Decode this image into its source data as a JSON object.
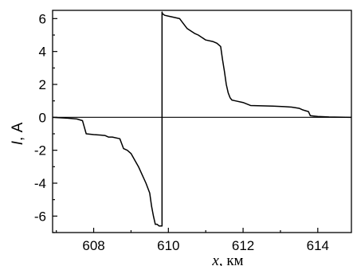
{
  "chart_data": {
    "type": "line",
    "xlabel_var": "x",
    "xlabel_unit": ", км",
    "ylabel_var": "I",
    "ylabel_unit": ", А",
    "xlim": [
      606.9,
      614.9
    ],
    "ylim": [
      -7.0,
      6.5
    ],
    "x_ticks": [
      608,
      610,
      612,
      614
    ],
    "y_ticks": [
      -6,
      -4,
      -2,
      0,
      2,
      4,
      6
    ],
    "x_tick_labels": [
      "608",
      "610",
      "612",
      "614"
    ],
    "y_tick_labels": [
      "-6",
      "-4",
      "-2",
      "0",
      "2",
      "4",
      "6"
    ],
    "grid": false,
    "zero_line": 0,
    "series": [
      {
        "x": [
          606.9,
          607.3,
          607.55,
          607.7,
          607.75,
          607.8,
          608.0,
          608.3,
          608.4,
          608.5,
          608.7,
          608.75,
          608.8,
          608.9,
          609.0,
          609.1,
          609.2,
          609.3,
          609.4,
          609.5,
          609.55,
          609.6,
          609.65,
          609.7,
          609.75,
          609.83,
          609.83,
          609.84,
          609.9,
          610.0,
          610.1,
          610.3,
          610.4,
          610.5,
          610.7,
          610.8,
          611.0,
          611.2,
          611.3,
          611.4,
          611.45,
          611.5,
          611.55,
          611.6,
          611.65,
          611.7,
          611.8,
          612.0,
          612.2,
          612.5,
          612.8,
          613.1,
          613.3,
          613.5,
          613.6,
          613.75,
          613.8,
          614.0,
          614.3,
          614.9
        ],
        "y": [
          0.0,
          -0.05,
          -0.1,
          -0.2,
          -0.6,
          -1.0,
          -1.05,
          -1.1,
          -1.2,
          -1.2,
          -1.3,
          -1.6,
          -1.9,
          -2.0,
          -2.2,
          -2.6,
          -3.0,
          -3.5,
          -4.0,
          -4.6,
          -5.4,
          -6.0,
          -6.5,
          -6.5,
          -6.6,
          -6.6,
          6.4,
          6.3,
          6.2,
          6.15,
          6.1,
          6.0,
          5.7,
          5.4,
          5.1,
          5.0,
          4.7,
          4.6,
          4.5,
          4.3,
          3.5,
          2.8,
          2.0,
          1.5,
          1.2,
          1.05,
          1.0,
          0.9,
          0.72,
          0.7,
          0.68,
          0.65,
          0.62,
          0.55,
          0.45,
          0.35,
          0.1,
          0.05,
          0.02,
          0.0
        ]
      }
    ]
  }
}
